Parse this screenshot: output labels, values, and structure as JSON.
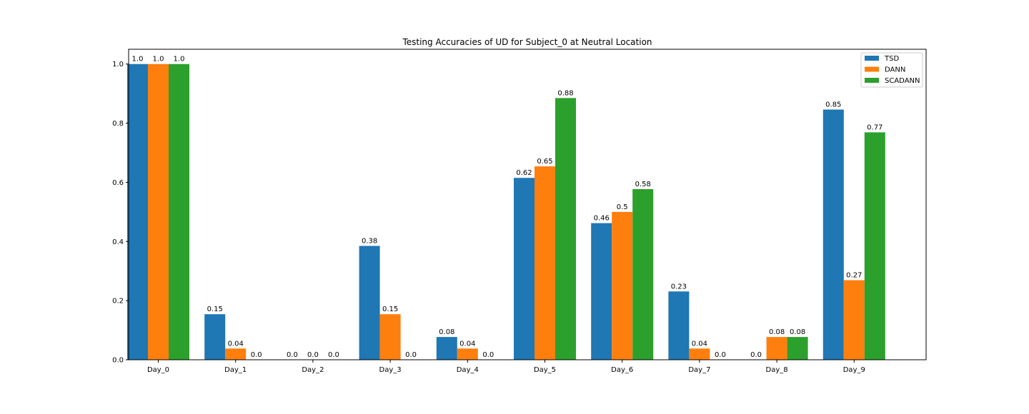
{
  "chart_data": {
    "type": "bar",
    "title": "Testing Accuracies of UD for Subject_0 at Neutral Location",
    "xlabel": "",
    "ylabel": "",
    "categories": [
      "Day_0",
      "Day_1",
      "Day_2",
      "Day_3",
      "Day_4",
      "Day_5",
      "Day_6",
      "Day_7",
      "Day_8",
      "Day_9"
    ],
    "series": [
      {
        "name": "TSD",
        "color": "#1f77b4",
        "values": [
          1.0,
          0.154,
          0.0,
          0.385,
          0.077,
          0.615,
          0.462,
          0.231,
          0.0,
          0.846
        ],
        "labels": [
          "1.0",
          "0.15",
          "0.0",
          "0.38",
          "0.08",
          "0.62",
          "0.46",
          "0.23",
          "0.0",
          "0.85"
        ]
      },
      {
        "name": "DANN",
        "color": "#ff7f0e",
        "values": [
          1.0,
          0.038,
          0.0,
          0.154,
          0.038,
          0.654,
          0.5,
          0.038,
          0.077,
          0.269
        ],
        "labels": [
          "1.0",
          "0.04",
          "0.0",
          "0.15",
          "0.04",
          "0.65",
          "0.5",
          "0.04",
          "0.08",
          "0.27"
        ]
      },
      {
        "name": "SCADANN",
        "color": "#2ca02c",
        "values": [
          1.0,
          0.0,
          0.0,
          0.0,
          0.0,
          0.885,
          0.577,
          0.0,
          0.077,
          0.769
        ],
        "labels": [
          "1.0",
          "0.0",
          "0.0",
          "0.0",
          "0.0",
          "0.88",
          "0.58",
          "0.0",
          "0.08",
          "0.77"
        ]
      }
    ],
    "ylim": [
      0,
      1.05
    ],
    "yticks": [
      "0.0",
      "0.2",
      "0.4",
      "0.6",
      "0.8",
      "1.0"
    ],
    "grid": false,
    "legend_position": "upper-right"
  }
}
